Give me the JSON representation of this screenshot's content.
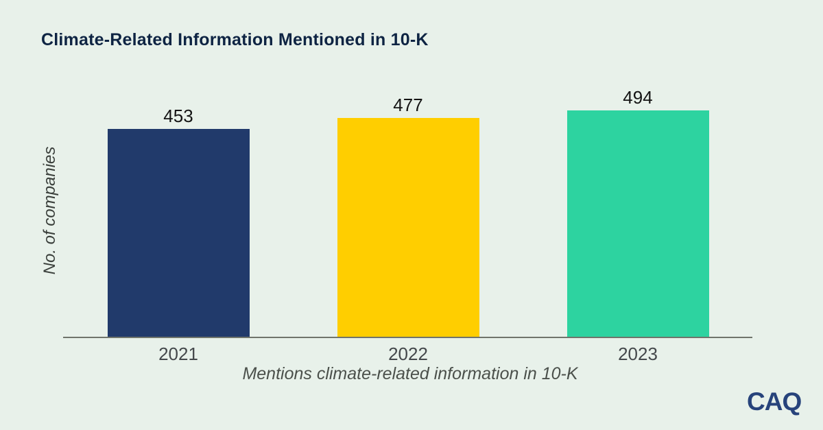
{
  "chart_data": {
    "type": "bar",
    "title": "Climate-Related Information Mentioned in 10-K",
    "categories": [
      "2021",
      "2022",
      "2023"
    ],
    "values": [
      453,
      477,
      494
    ],
    "bar_colors": [
      "#213A6B",
      "#FFCE00",
      "#2DD3A0"
    ],
    "xlabel": "Mentions climate-related information in 10-K",
    "ylabel": "No. of companies",
    "ylim": [
      0,
      500
    ],
    "grid": false,
    "legend": "none",
    "value_labels_shown": true
  },
  "logo": {
    "text": "CAQ",
    "color": "#27437B"
  },
  "colors": {
    "background": "#E8F1EA",
    "title": "#0E2443",
    "axis_line": "#70746B",
    "tick_label": "#44484B",
    "value_label": "#141414"
  }
}
